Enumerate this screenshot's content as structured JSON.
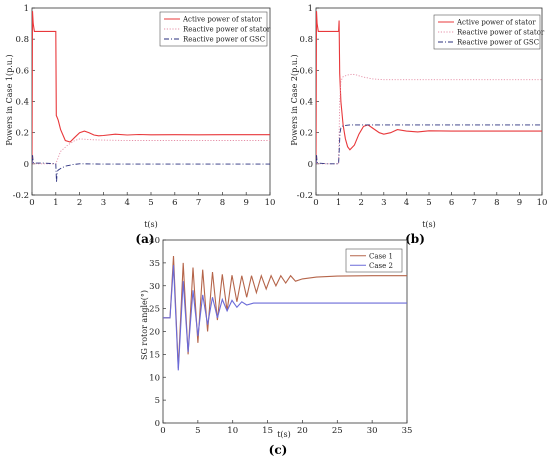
{
  "chart_data": [
    {
      "panel_label": "(a)",
      "type": "line",
      "xlabel": "t(s)",
      "ylabel": "Powers in Case 1(p.u.)",
      "xlim": [
        0,
        10
      ],
      "ylim": [
        -0.2,
        1.0
      ],
      "xticks": [
        "0",
        "1",
        "2",
        "3",
        "4",
        "5",
        "6",
        "7",
        "8",
        "9",
        "10"
      ],
      "yticks": [
        "-0.2",
        "0",
        "0.2",
        "0.4",
        "0.6",
        "0.8",
        "1"
      ],
      "legend_position": "top-right",
      "series": [
        {
          "name": "Active power of stator",
          "color": "#e8383b",
          "dash": "solid",
          "x": [
            0,
            0.02,
            0.05,
            0.1,
            0.2,
            0.5,
            0.9,
            1.0,
            1.02,
            1.05,
            1.1,
            1.2,
            1.4,
            1.6,
            1.8,
            2.0,
            2.2,
            2.4,
            2.6,
            2.8,
            3.0,
            3.5,
            4.0,
            4.5,
            5.0,
            6.0,
            7.0,
            8.0,
            9.0,
            10.0
          ],
          "y": [
            0.0,
            0.98,
            0.9,
            0.85,
            0.85,
            0.85,
            0.85,
            0.85,
            0.31,
            0.3,
            0.28,
            0.22,
            0.15,
            0.14,
            0.17,
            0.2,
            0.21,
            0.2,
            0.185,
            0.18,
            0.182,
            0.19,
            0.185,
            0.188,
            0.186,
            0.187,
            0.186,
            0.187,
            0.187,
            0.187
          ]
        },
        {
          "name": "Reactive power of stator",
          "color": "#e58fa7",
          "dash": "dotted",
          "x": [
            0,
            0.03,
            0.05,
            0.1,
            0.5,
            1.0,
            1.05,
            1.2,
            1.5,
            1.8,
            2.0,
            2.5,
            3.0,
            4.0,
            5.0,
            6.0,
            7.0,
            8.0,
            9.0,
            10.0
          ],
          "y": [
            0.0,
            0.02,
            0.0,
            0.0,
            0.0,
            0.0,
            0.02,
            0.08,
            0.12,
            0.15,
            0.16,
            0.155,
            0.152,
            0.15,
            0.15,
            0.15,
            0.15,
            0.15,
            0.15,
            0.15
          ]
        },
        {
          "name": "Reactive power of GSC",
          "color": "#2a2f7e",
          "dash": "dashdot",
          "x": [
            0,
            0.02,
            0.05,
            0.1,
            0.5,
            1.0,
            1.03,
            1.06,
            1.1,
            1.2,
            1.4,
            1.7,
            2.0,
            3.0,
            4.0,
            5.0,
            6.0,
            7.0,
            8.0,
            9.0,
            10.0
          ],
          "y": [
            0.0,
            0.06,
            0.01,
            0.005,
            0.005,
            0.0,
            -0.12,
            -0.05,
            -0.04,
            -0.03,
            -0.015,
            -0.005,
            0.0,
            -0.002,
            -0.002,
            -0.002,
            -0.002,
            -0.002,
            -0.002,
            -0.002,
            -0.002
          ]
        }
      ]
    },
    {
      "panel_label": "(b)",
      "type": "line",
      "xlabel": "t(s)",
      "ylabel": "Powers in Case 2(p.u.)",
      "xlim": [
        0,
        10
      ],
      "ylim": [
        -0.2,
        1.0
      ],
      "xticks": [
        "0",
        "1",
        "2",
        "3",
        "4",
        "5",
        "6",
        "7",
        "8",
        "9",
        "10"
      ],
      "yticks": [
        "-0.2",
        "0",
        "0.2",
        "0.4",
        "0.6",
        "0.8",
        "1"
      ],
      "legend_position": "top-right",
      "series": [
        {
          "name": "Active power of stator",
          "color": "#e8383b",
          "dash": "solid",
          "x": [
            0,
            0.02,
            0.05,
            0.1,
            0.2,
            0.5,
            0.9,
            1.0,
            1.02,
            1.05,
            1.1,
            1.2,
            1.3,
            1.4,
            1.5,
            1.7,
            1.9,
            2.1,
            2.3,
            2.5,
            2.8,
            3.0,
            3.3,
            3.6,
            4.0,
            4.5,
            5.0,
            6.0,
            7.0,
            8.0,
            9.0,
            10.0
          ],
          "y": [
            0.0,
            0.98,
            0.9,
            0.85,
            0.85,
            0.85,
            0.85,
            0.85,
            0.92,
            0.58,
            0.4,
            0.25,
            0.16,
            0.11,
            0.09,
            0.12,
            0.19,
            0.24,
            0.25,
            0.23,
            0.2,
            0.19,
            0.2,
            0.22,
            0.21,
            0.205,
            0.212,
            0.21,
            0.21,
            0.21,
            0.21,
            0.21
          ]
        },
        {
          "name": "Reactive power of stator",
          "color": "#e58fa7",
          "dash": "dotted",
          "x": [
            0,
            0.03,
            0.05,
            0.1,
            0.5,
            1.0,
            1.05,
            1.1,
            1.2,
            1.4,
            1.6,
            1.8,
            2.0,
            2.5,
            3.0,
            4.0,
            5.0,
            6.0,
            7.0,
            8.0,
            9.0,
            10.0
          ],
          "y": [
            0.0,
            0.02,
            0.0,
            0.0,
            0.0,
            0.0,
            0.4,
            0.53,
            0.56,
            0.57,
            0.575,
            0.57,
            0.56,
            0.545,
            0.54,
            0.54,
            0.54,
            0.54,
            0.54,
            0.54,
            0.54,
            0.54
          ]
        },
        {
          "name": "Reactive power of GSC",
          "color": "#2a2f7e",
          "dash": "dashdot",
          "x": [
            0,
            0.02,
            0.05,
            0.1,
            0.5,
            1.0,
            1.03,
            1.06,
            1.1,
            1.2,
            1.5,
            2.0,
            3.0,
            4.0,
            5.0,
            6.0,
            7.0,
            8.0,
            9.0,
            10.0
          ],
          "y": [
            0.0,
            0.06,
            0.01,
            0.005,
            0.0,
            0.0,
            0.1,
            0.2,
            0.23,
            0.245,
            0.25,
            0.25,
            0.25,
            0.25,
            0.25,
            0.25,
            0.25,
            0.25,
            0.25,
            0.25
          ]
        }
      ]
    },
    {
      "panel_label": "(c)",
      "type": "line",
      "xlabel": "t(s)",
      "ylabel": "SG rotor angle(°)",
      "xlim": [
        0,
        35
      ],
      "ylim": [
        0,
        40
      ],
      "xticks": [
        "0",
        "5",
        "10",
        "15",
        "20",
        "25",
        "30",
        "35"
      ],
      "yticks": [
        "0",
        "5",
        "10",
        "15",
        "20",
        "25",
        "30",
        "35",
        "40"
      ],
      "legend_position": "top-right",
      "series": [
        {
          "name": "Case 1",
          "color": "#b5654a",
          "dash": "solid",
          "x": [
            0,
            1.0,
            1.5,
            2.2,
            2.9,
            3.6,
            4.3,
            5.0,
            5.7,
            6.4,
            7.1,
            7.8,
            8.5,
            9.2,
            9.9,
            10.6,
            11.3,
            12.0,
            12.7,
            13.4,
            14.1,
            14.8,
            15.5,
            16.2,
            16.9,
            17.6,
            18.3,
            19.0,
            20.0,
            22.0,
            25.0,
            30.0,
            35.0
          ],
          "y": [
            23,
            23,
            36.5,
            12,
            35,
            15,
            34,
            17.5,
            33.5,
            20,
            33,
            22.5,
            32.5,
            24.5,
            32.3,
            26.5,
            32.2,
            27.5,
            32.2,
            28.5,
            32.2,
            29.3,
            32.2,
            30.0,
            32.2,
            30.6,
            32.2,
            31.0,
            31.5,
            31.9,
            32.1,
            32.2,
            32.2
          ]
        },
        {
          "name": "Case 2",
          "color": "#6b6bd8",
          "dash": "solid",
          "x": [
            0,
            1.0,
            1.5,
            2.2,
            2.9,
            3.6,
            4.3,
            5.0,
            5.7,
            6.4,
            7.1,
            7.8,
            8.5,
            9.2,
            9.9,
            10.6,
            11.3,
            12.0,
            13.0,
            15.0,
            20.0,
            25.0,
            30.0,
            35.0
          ],
          "y": [
            23,
            23,
            34.5,
            11.5,
            31,
            15.5,
            29,
            19,
            28,
            21.5,
            27.5,
            23,
            27,
            24.5,
            26.8,
            25.3,
            26.5,
            25.8,
            26.2,
            26.2,
            26.2,
            26.2,
            26.2,
            26.2
          ]
        }
      ]
    }
  ]
}
